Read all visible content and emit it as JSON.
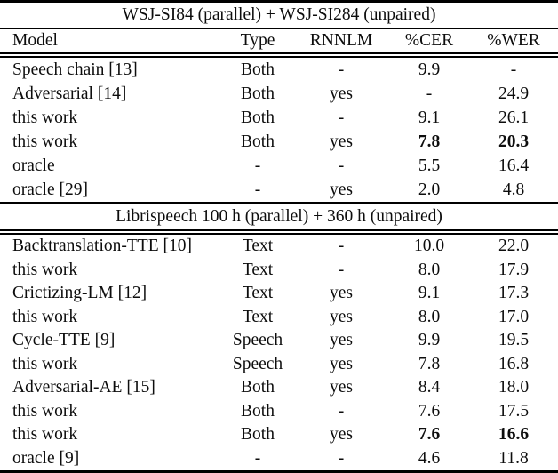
{
  "colors": {
    "text": "#0d0d0d",
    "background": "#ffffff"
  },
  "table": {
    "columns": [
      "Model",
      "Type",
      "RNNLM",
      "%CER",
      "%WER"
    ],
    "sections": [
      {
        "title": "WSJ-SI84 (parallel) + WSJ-SI284 (unpaired)",
        "show_column_header": true,
        "rows": [
          {
            "model": "Speech chain [13]",
            "type": "Both",
            "rnnlm": "-",
            "cer": "9.9",
            "wer": "-",
            "bold": false
          },
          {
            "model": "Adversarial [14]",
            "type": "Both",
            "rnnlm": "yes",
            "cer": "-",
            "wer": "24.9",
            "bold": false
          },
          {
            "model": "this work",
            "type": "Both",
            "rnnlm": "-",
            "cer": "9.1",
            "wer": "26.1",
            "bold": false
          },
          {
            "model": "this work",
            "type": "Both",
            "rnnlm": "yes",
            "cer": "7.8",
            "wer": "20.3",
            "bold": true
          },
          {
            "model": "oracle",
            "type": "-",
            "rnnlm": "-",
            "cer": "5.5",
            "wer": "16.4",
            "bold": false
          },
          {
            "model": "oracle [29]",
            "type": "-",
            "rnnlm": "yes",
            "cer": "2.0",
            "wer": "4.8",
            "bold": false
          }
        ]
      },
      {
        "title": "Librispeech 100 h (parallel) + 360 h (unpaired)",
        "show_column_header": false,
        "rows": [
          {
            "model": "Backtranslation-TTE [10]",
            "type": "Text",
            "rnnlm": "-",
            "cer": "10.0",
            "wer": "22.0",
            "bold": false
          },
          {
            "model": "this work",
            "type": "Text",
            "rnnlm": "-",
            "cer": "8.0",
            "wer": "17.9",
            "bold": false
          },
          {
            "model": "Crictizing-LM [12]",
            "type": "Text",
            "rnnlm": "yes",
            "cer": "9.1",
            "wer": "17.3",
            "bold": false
          },
          {
            "model": "this work",
            "type": "Text",
            "rnnlm": "yes",
            "cer": "8.0",
            "wer": "17.0",
            "bold": false
          },
          {
            "model": "Cycle-TTE [9]",
            "type": "Speech",
            "rnnlm": "yes",
            "cer": "9.9",
            "wer": "19.5",
            "bold": false
          },
          {
            "model": "this work",
            "type": "Speech",
            "rnnlm": "yes",
            "cer": "7.8",
            "wer": "16.8",
            "bold": false
          },
          {
            "model": "Adversarial-AE [15]",
            "type": "Both",
            "rnnlm": "yes",
            "cer": "8.4",
            "wer": "18.0",
            "bold": false
          },
          {
            "model": "this work",
            "type": "Both",
            "rnnlm": "-",
            "cer": "7.6",
            "wer": "17.5",
            "bold": false
          },
          {
            "model": "this work",
            "type": "Both",
            "rnnlm": "yes",
            "cer": "7.6",
            "wer": "16.6",
            "bold": true
          },
          {
            "model": "oracle [9]",
            "type": "-",
            "rnnlm": "-",
            "cer": "4.6",
            "wer": "11.8",
            "bold": false
          }
        ]
      }
    ]
  }
}
